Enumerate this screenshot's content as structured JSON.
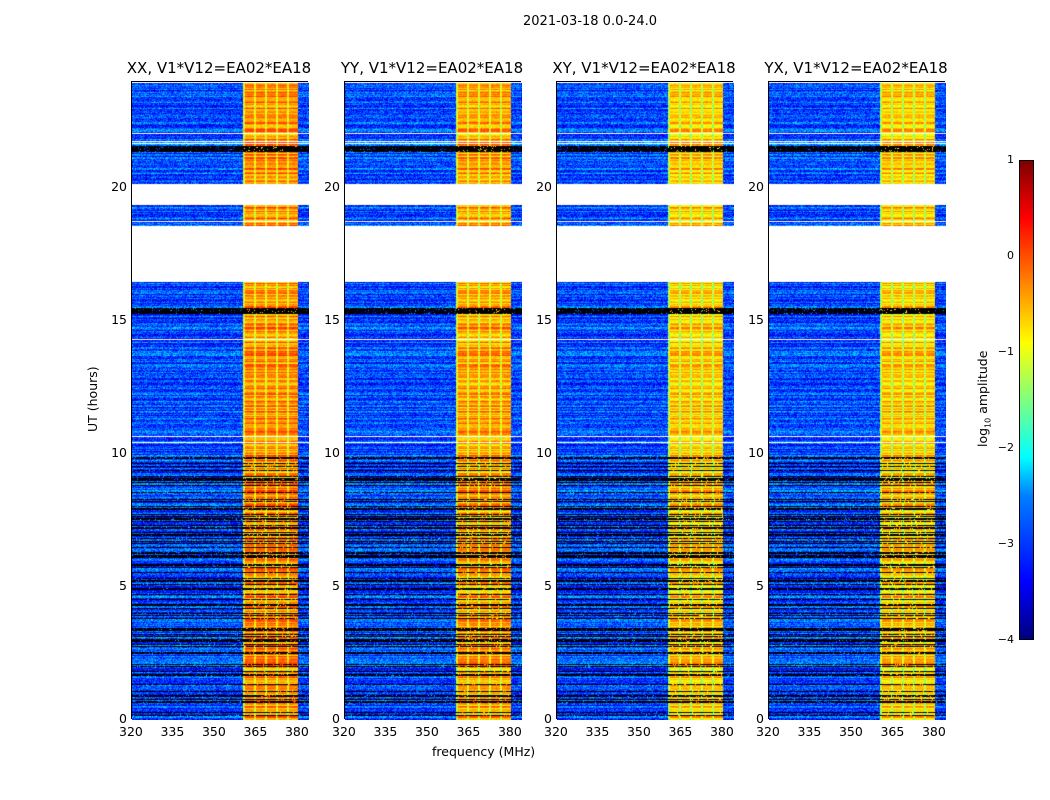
{
  "chart_data": {
    "type": "heatmap",
    "title": "2021-03-18 0.0-24.0",
    "xlabel": "frequency (MHz)",
    "ylabel": "UT (hours)",
    "xlim": [
      320,
      384
    ],
    "ylim": [
      0,
      24
    ],
    "xticks": [
      "320",
      "335",
      "350",
      "365",
      "380"
    ],
    "xtick_values": [
      320,
      335,
      350,
      365,
      380
    ],
    "yticks": [
      "0",
      "5",
      "10",
      "15",
      "20"
    ],
    "ytick_values": [
      0,
      5,
      10,
      15,
      20
    ],
    "panels": [
      {
        "title": "XX, V1*V12=EA02*EA18",
        "band_level": -0.3
      },
      {
        "title": "YY, V1*V12=EA02*EA18",
        "band_level": -0.4
      },
      {
        "title": "XY, V1*V12=EA02*EA18",
        "band_level": -0.6
      },
      {
        "title": "YX, V1*V12=EA02*EA18",
        "band_level": -0.6
      }
    ],
    "background_level": -3.0,
    "rfi_band_mhz": [
      360,
      380
    ],
    "no_data_hours": [
      [
        16.55,
        18.6
      ],
      [
        19.4,
        20.2
      ]
    ],
    "flagged_hours": [
      [
        21.4,
        21.6
      ],
      [
        15.3,
        15.5
      ]
    ],
    "dense_flagging_hours": [
      0,
      10
    ],
    "colorbar": {
      "label": "log10 amplitude",
      "label_main": "log",
      "label_sub": "10",
      "label_rest": " amplitude",
      "range": [
        -4,
        1
      ],
      "ticks": [
        "1",
        "0",
        "−1",
        "−2",
        "−3",
        "−4"
      ],
      "tick_values": [
        1,
        0,
        -1,
        -2,
        -3,
        -4
      ]
    }
  }
}
